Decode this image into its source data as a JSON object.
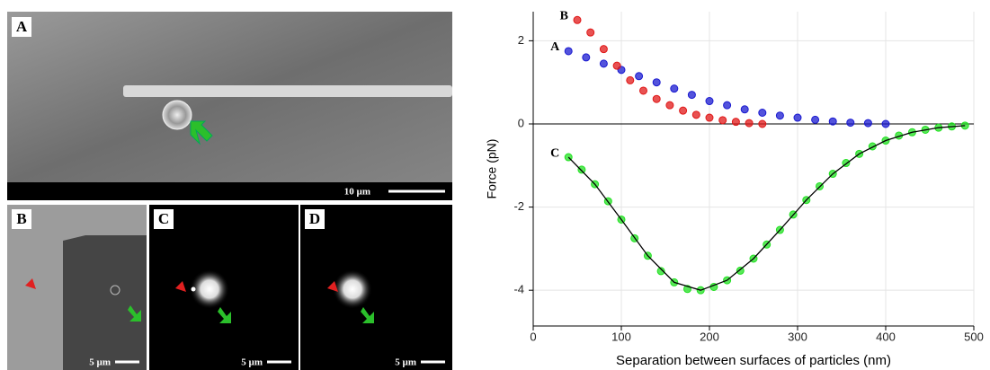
{
  "panels": [
    {
      "label": "A",
      "scale": "10 µm"
    },
    {
      "label": "B",
      "scale": "5 µm"
    },
    {
      "label": "C",
      "scale": "5 µm"
    },
    {
      "label": "D",
      "scale": "5 µm"
    }
  ],
  "chart_data": {
    "type": "scatter",
    "x_label": "Separation between surfaces of particles (nm)",
    "y_label": "Force (pN)",
    "xlim": [
      0,
      500
    ],
    "ylim": [
      -4.86,
      2.7
    ],
    "xticks": [
      0,
      100,
      200,
      300,
      400,
      500
    ],
    "yticks": [
      2,
      0,
      -2,
      -4
    ],
    "grid": true,
    "zero_line": true,
    "series": [
      {
        "name": "A",
        "color": "#1a1ad0",
        "x": [
          40,
          60,
          80,
          100,
          120,
          140,
          160,
          180,
          200,
          220,
          240,
          260,
          280,
          300,
          320,
          340,
          360,
          380,
          400
        ],
        "values": [
          1.75,
          1.6,
          1.45,
          1.3,
          1.15,
          1.0,
          0.85,
          0.7,
          0.55,
          0.45,
          0.35,
          0.27,
          0.2,
          0.15,
          0.1,
          0.06,
          0.03,
          0.02,
          0.0
        ]
      },
      {
        "name": "B",
        "color": "#e01818",
        "x": [
          50,
          65,
          80,
          95,
          110,
          125,
          140,
          155,
          170,
          185,
          200,
          215,
          230,
          245,
          260
        ],
        "values": [
          2.5,
          2.2,
          1.8,
          1.4,
          1.05,
          0.8,
          0.6,
          0.45,
          0.32,
          0.22,
          0.15,
          0.09,
          0.05,
          0.02,
          0.0
        ]
      },
      {
        "name": "C",
        "color": "#22e022",
        "x": [
          40,
          55,
          70,
          85,
          100,
          115,
          130,
          145,
          160,
          175,
          190,
          205,
          220,
          235,
          250,
          265,
          280,
          295,
          310,
          325,
          340,
          355,
          370,
          385,
          400,
          415,
          430,
          445,
          460,
          475,
          490
        ],
        "values": [
          -0.8,
          -1.1,
          -1.45,
          -1.86,
          -2.3,
          -2.75,
          -3.17,
          -3.54,
          -3.81,
          -3.97,
          -4.0,
          -3.92,
          -3.76,
          -3.53,
          -3.24,
          -2.9,
          -2.55,
          -2.18,
          -1.83,
          -1.5,
          -1.2,
          -0.94,
          -0.72,
          -0.54,
          -0.4,
          -0.28,
          -0.2,
          -0.14,
          -0.09,
          -0.06,
          -0.04
        ]
      }
    ],
    "fit": {
      "color": "#000000",
      "x": [
        40,
        70,
        100,
        130,
        160,
        190,
        220,
        250,
        280,
        310,
        340,
        370,
        400,
        430,
        460,
        490
      ],
      "values": [
        -0.8,
        -1.45,
        -2.3,
        -3.17,
        -3.81,
        -4.0,
        -3.76,
        -3.24,
        -2.55,
        -1.83,
        -1.2,
        -0.72,
        -0.4,
        -0.2,
        -0.09,
        -0.04
      ]
    }
  }
}
